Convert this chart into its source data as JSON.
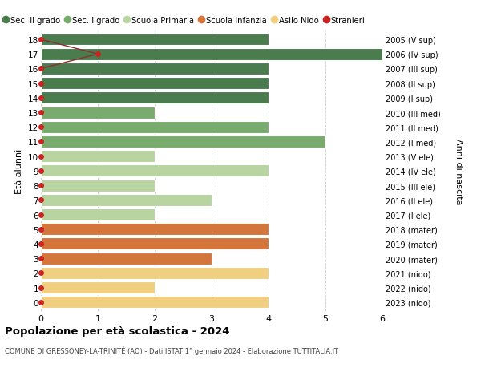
{
  "ages": [
    18,
    17,
    16,
    15,
    14,
    13,
    12,
    11,
    10,
    9,
    8,
    7,
    6,
    5,
    4,
    3,
    2,
    1,
    0
  ],
  "right_labels": [
    "2005 (V sup)",
    "2006 (IV sup)",
    "2007 (III sup)",
    "2008 (II sup)",
    "2009 (I sup)",
    "2010 (III med)",
    "2011 (II med)",
    "2012 (I med)",
    "2013 (V ele)",
    "2014 (IV ele)",
    "2015 (III ele)",
    "2016 (II ele)",
    "2017 (I ele)",
    "2018 (mater)",
    "2019 (mater)",
    "2020 (mater)",
    "2021 (nido)",
    "2022 (nido)",
    "2023 (nido)"
  ],
  "bar_values": [
    4,
    6,
    4,
    4,
    4,
    2,
    4,
    5,
    2,
    4,
    2,
    3,
    2,
    4,
    4,
    3,
    4,
    2,
    4
  ],
  "bar_colors": [
    "#4a7c4e",
    "#4a7c4e",
    "#4a7c4e",
    "#4a7c4e",
    "#4a7c4e",
    "#7aab6e",
    "#7aab6e",
    "#7aab6e",
    "#b8d4a0",
    "#b8d4a0",
    "#b8d4a0",
    "#b8d4a0",
    "#b8d4a0",
    "#d4763c",
    "#d4763c",
    "#d4763c",
    "#f0d080",
    "#f0d080",
    "#f0d080"
  ],
  "stranieri_ages": [
    18,
    17,
    16,
    15,
    14,
    13,
    12,
    11,
    10,
    9,
    8,
    7,
    6,
    5,
    4,
    3,
    2,
    1,
    0
  ],
  "stranieri_x": [
    0,
    1,
    0,
    0,
    0,
    0,
    0,
    0,
    0,
    0,
    0,
    0,
    0,
    0,
    0,
    0,
    0,
    0,
    0
  ],
  "legend_labels": [
    "Sec. II grado",
    "Sec. I grado",
    "Scuola Primaria",
    "Scuola Infanzia",
    "Asilo Nido",
    "Stranieri"
  ],
  "legend_colors": [
    "#4a7c4e",
    "#7aab6e",
    "#b8d4a0",
    "#d4763c",
    "#f0d080",
    "#cc2222"
  ],
  "ylabel_left": "Età alunni",
  "ylabel_right": "Anni di nascita",
  "title": "Popolazione per età scolastica - 2024",
  "subtitle": "COMUNE DI GRESSONEY-LA-TRINITÉ (AO) - Dati ISTAT 1° gennaio 2024 - Elaborazione TUTTITALIA.IT",
  "xlim": [
    0,
    6
  ],
  "xticks": [
    0,
    1,
    2,
    3,
    4,
    5,
    6
  ],
  "background_color": "#ffffff",
  "grid_color": "#cccccc",
  "stranieri_color": "#cc2222",
  "line_color": "#8b3030",
  "bar_height": 0.82,
  "bar_edgecolor": "white",
  "bar_linewidth": 0.8
}
